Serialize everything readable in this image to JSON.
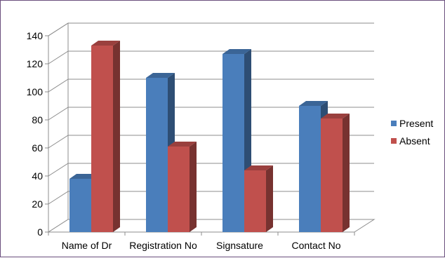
{
  "chart_data": {
    "type": "bar",
    "style": "3d-clustered-column",
    "categories": [
      "Name of Dr",
      "Registration No",
      "Signsature",
      "Contact No"
    ],
    "series": [
      {
        "name": "Present",
        "values": [
          38,
          110,
          127,
          90
        ],
        "color": "#4a7ebb"
      },
      {
        "name": "Absent",
        "values": [
          133,
          61,
          44,
          81
        ],
        "color": "#c0504d"
      }
    ],
    "y_ticks": [
      "0",
      "20",
      "40",
      "60",
      "80",
      "100",
      "120",
      "140"
    ],
    "ylim": [
      0,
      140
    ],
    "grid": true,
    "legend_position": "right"
  }
}
